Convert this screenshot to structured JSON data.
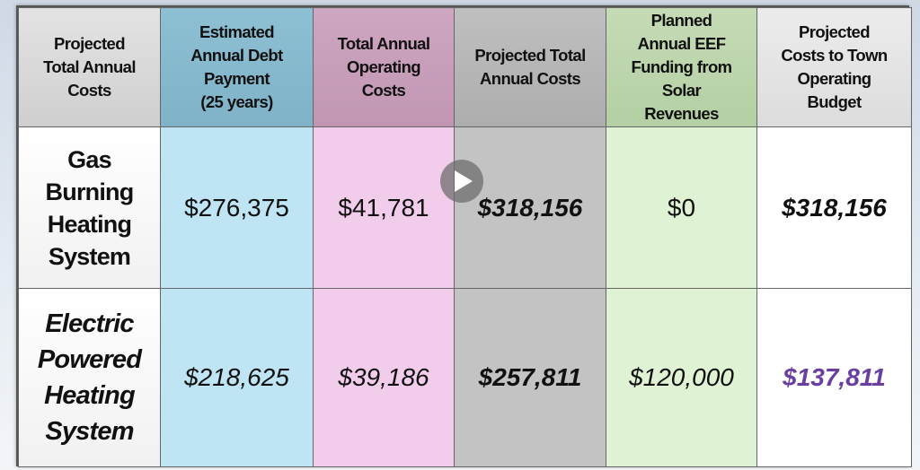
{
  "table": {
    "headers": [
      "Projected\nTotal Annual\nCosts",
      "Estimated\nAnnual Debt\nPayment\n(25 years)",
      "Total Annual\nOperating\nCosts",
      "Projected Total\nAnnual Costs",
      "Planned\nAnnual EEF\nFunding from\nSolar\nRevenues",
      "Projected\nCosts to Town\nOperating\nBudget"
    ],
    "rows": [
      {
        "label": "Gas\nBurning\nHeating\nSystem",
        "values": [
          "$276,375",
          "$41,781",
          "$318,156",
          "$0",
          "$318,156"
        ]
      },
      {
        "label": "Electric\nPowered\nHeating\nSystem",
        "values": [
          "$218,625",
          "$39,186",
          "$257,811",
          "$120,000",
          "$137,811"
        ]
      }
    ]
  },
  "colors": {
    "highlight_value": "#6b3fa0"
  },
  "icons": {
    "play": "play-icon"
  }
}
